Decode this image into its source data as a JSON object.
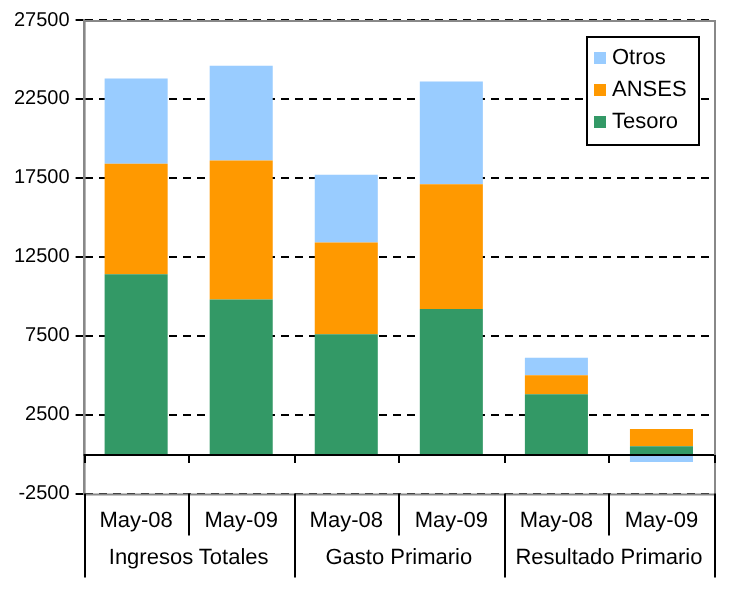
{
  "chart_data": {
    "type": "bar",
    "stacked": true,
    "categories": [
      "May-08",
      "May-09",
      "May-08",
      "May-09",
      "May-08",
      "May-09"
    ],
    "series": [
      {
        "name": "Tesoro",
        "color": "#339966",
        "values": [
          11400,
          9800,
          7600,
          9200,
          3800,
          500
        ]
      },
      {
        "name": "ANSES",
        "color": "#ff9900",
        "values": [
          7000,
          8800,
          5800,
          7900,
          1200,
          1100
        ]
      },
      {
        "name": "Otros",
        "color": "#99ccff",
        "values": [
          5400,
          6000,
          4300,
          6500,
          1100,
          -500
        ]
      }
    ],
    "ylim": [
      -2500,
      27500
    ],
    "yticks": [
      -2500,
      2500,
      7500,
      12500,
      17500,
      22500,
      27500
    ],
    "grid": "y",
    "legend": "top right",
    "annotations": [
      "Ingresos Totales",
      "Gasto Primario",
      "Resultado Primario"
    ]
  }
}
